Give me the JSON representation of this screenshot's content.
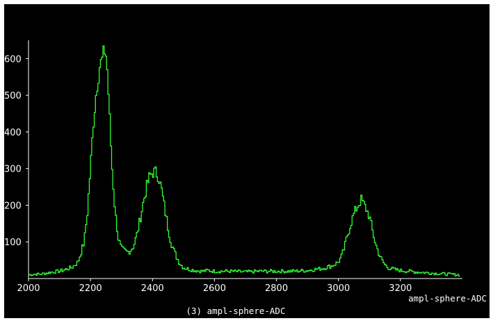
{
  "chart_data": {
    "type": "line",
    "title": "(3) ampl-sphere-ADC",
    "xlabel": "ampl-sphere-ADC",
    "ylabel": "",
    "xlim": [
      2000,
      3400
    ],
    "ylim": [
      0,
      650
    ],
    "x_ticks": [
      2000,
      2200,
      2400,
      2600,
      2800,
      3000,
      3200
    ],
    "y_ticks": [
      100,
      200,
      300,
      400,
      500,
      600
    ],
    "grid": false,
    "legend": "none",
    "line_style": "step histogram",
    "colors": {
      "background": "#000000",
      "series": "#33ff33",
      "axes": "#ffffff",
      "text": "#ffffff"
    },
    "series": [
      {
        "values_note": "",
        "x": [
          2000,
          2020,
          2040,
          2060,
          2080,
          2100,
          2120,
          2140,
          2160,
          2180,
          2190,
          2200,
          2210,
          2220,
          2230,
          2240,
          2245,
          2250,
          2255,
          2260,
          2265,
          2270,
          2280,
          2290,
          2300,
          2310,
          2320,
          2330,
          2340,
          2350,
          2360,
          2370,
          2380,
          2390,
          2400,
          2410,
          2420,
          2430,
          2440,
          2450,
          2460,
          2470,
          2480,
          2490,
          2500,
          2520,
          2540,
          2560,
          2580,
          2600,
          2650,
          2700,
          2750,
          2800,
          2850,
          2900,
          2950,
          2980,
          3000,
          3010,
          3020,
          3030,
          3040,
          3050,
          3060,
          3070,
          3075,
          3080,
          3090,
          3100,
          3110,
          3120,
          3130,
          3140,
          3150,
          3160,
          3180,
          3200,
          3250,
          3300,
          3350,
          3390
        ],
        "y": [
          10,
          12,
          12,
          15,
          18,
          20,
          25,
          30,
          45,
          100,
          180,
          300,
          430,
          520,
          580,
          600,
          625,
          610,
          560,
          470,
          380,
          300,
          180,
          110,
          80,
          75,
          72,
          78,
          90,
          120,
          160,
          205,
          245,
          275,
          290,
          290,
          280,
          240,
          190,
          140,
          100,
          75,
          55,
          40,
          30,
          25,
          22,
          20,
          22,
          20,
          20,
          18,
          20,
          20,
          20,
          22,
          28,
          35,
          45,
          60,
          85,
          120,
          150,
          175,
          195,
          210,
          215,
          205,
          190,
          170,
          130,
          95,
          70,
          50,
          38,
          30,
          25,
          22,
          18,
          15,
          12,
          10
        ]
      }
    ]
  }
}
